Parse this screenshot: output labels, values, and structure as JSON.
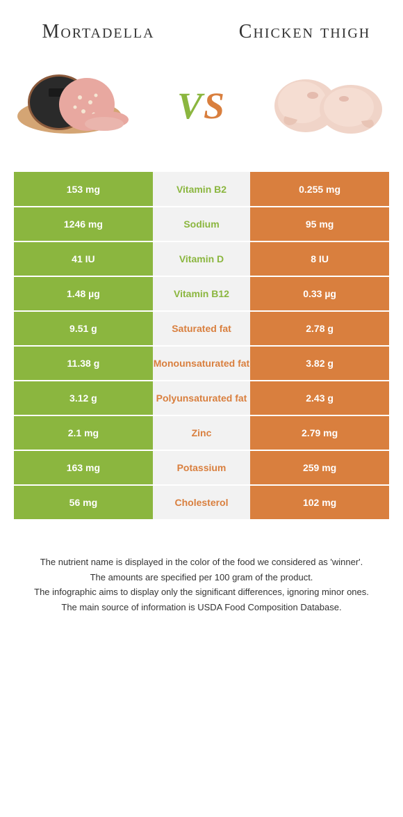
{
  "header": {
    "left_title": "Mortadella",
    "right_title": "Chicken thigh"
  },
  "vs": {
    "v": "V",
    "s": "S"
  },
  "colors": {
    "green": "#8bb63f",
    "orange": "#d97f3e",
    "grey": "#f2f2f2",
    "white": "#ffffff"
  },
  "rows": [
    {
      "left": "153 mg",
      "mid": "Vitamin B2",
      "right": "0.255 mg",
      "winner": "left"
    },
    {
      "left": "1246 mg",
      "mid": "Sodium",
      "right": "95 mg",
      "winner": "left"
    },
    {
      "left": "41 IU",
      "mid": "Vitamin D",
      "right": "8 IU",
      "winner": "left"
    },
    {
      "left": "1.48 µg",
      "mid": "Vitamin B12",
      "right": "0.33 µg",
      "winner": "left"
    },
    {
      "left": "9.51 g",
      "mid": "Saturated fat",
      "right": "2.78 g",
      "winner": "right"
    },
    {
      "left": "11.38 g",
      "mid": "Monounsaturated fat",
      "right": "3.82 g",
      "winner": "right"
    },
    {
      "left": "3.12 g",
      "mid": "Polyunsaturated fat",
      "right": "2.43 g",
      "winner": "right"
    },
    {
      "left": "2.1 mg",
      "mid": "Zinc",
      "right": "2.79 mg",
      "winner": "right"
    },
    {
      "left": "163 mg",
      "mid": "Potassium",
      "right": "259 mg",
      "winner": "right"
    },
    {
      "left": "56 mg",
      "mid": "Cholesterol",
      "right": "102 mg",
      "winner": "right"
    }
  ],
  "footer": {
    "line1": "The nutrient name is displayed in the color of the food we considered as 'winner'.",
    "line2": "The amounts are specified per 100 gram of the product.",
    "line3": "The infographic aims to display only the significant differences, ignoring minor ones.",
    "line4": "The main source of information is USDA Food Composition Database."
  }
}
